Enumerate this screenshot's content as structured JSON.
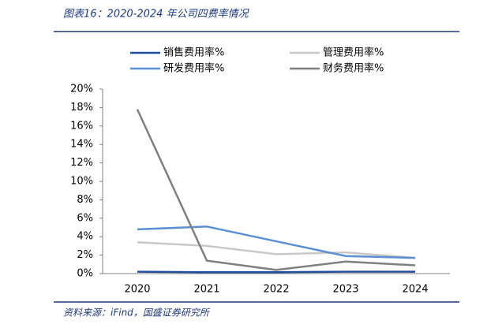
{
  "chart_data": {
    "type": "line",
    "title": "图表16：2020-2024 年公司四费率情况",
    "source": "资料来源：iFind，国盛证券研究所",
    "categories": [
      "2020",
      "2021",
      "2022",
      "2023",
      "2024"
    ],
    "series": [
      {
        "name": "销售费用率%",
        "color": "#1f4e9c",
        "values": [
          0.2,
          0.15,
          0.15,
          0.2,
          0.2
        ]
      },
      {
        "name": "管理费用率%",
        "color": "#c8c8c8",
        "values": [
          3.4,
          3.0,
          2.1,
          2.3,
          1.7
        ]
      },
      {
        "name": "研发费用率%",
        "color": "#5b8fd4",
        "values": [
          4.8,
          5.1,
          3.5,
          1.9,
          1.7
        ]
      },
      {
        "name": "财务费用率%",
        "color": "#7f7f7f",
        "values": [
          17.8,
          1.4,
          0.4,
          1.3,
          0.9
        ]
      }
    ],
    "ylim": [
      0,
      20
    ],
    "yticks": [
      {
        "value": 0,
        "label": "0%"
      },
      {
        "value": 2,
        "label": "2%"
      },
      {
        "value": 4,
        "label": "4%"
      },
      {
        "value": 6,
        "label": "6%"
      },
      {
        "value": 8,
        "label": "8%"
      },
      {
        "value": 10,
        "label": "10%"
      },
      {
        "value": 12,
        "label": "12%"
      },
      {
        "value": 14,
        "label": "14%"
      },
      {
        "value": 16,
        "label": "16%"
      },
      {
        "value": 18,
        "label": "18%"
      },
      {
        "value": 20,
        "label": "20%"
      }
    ]
  }
}
